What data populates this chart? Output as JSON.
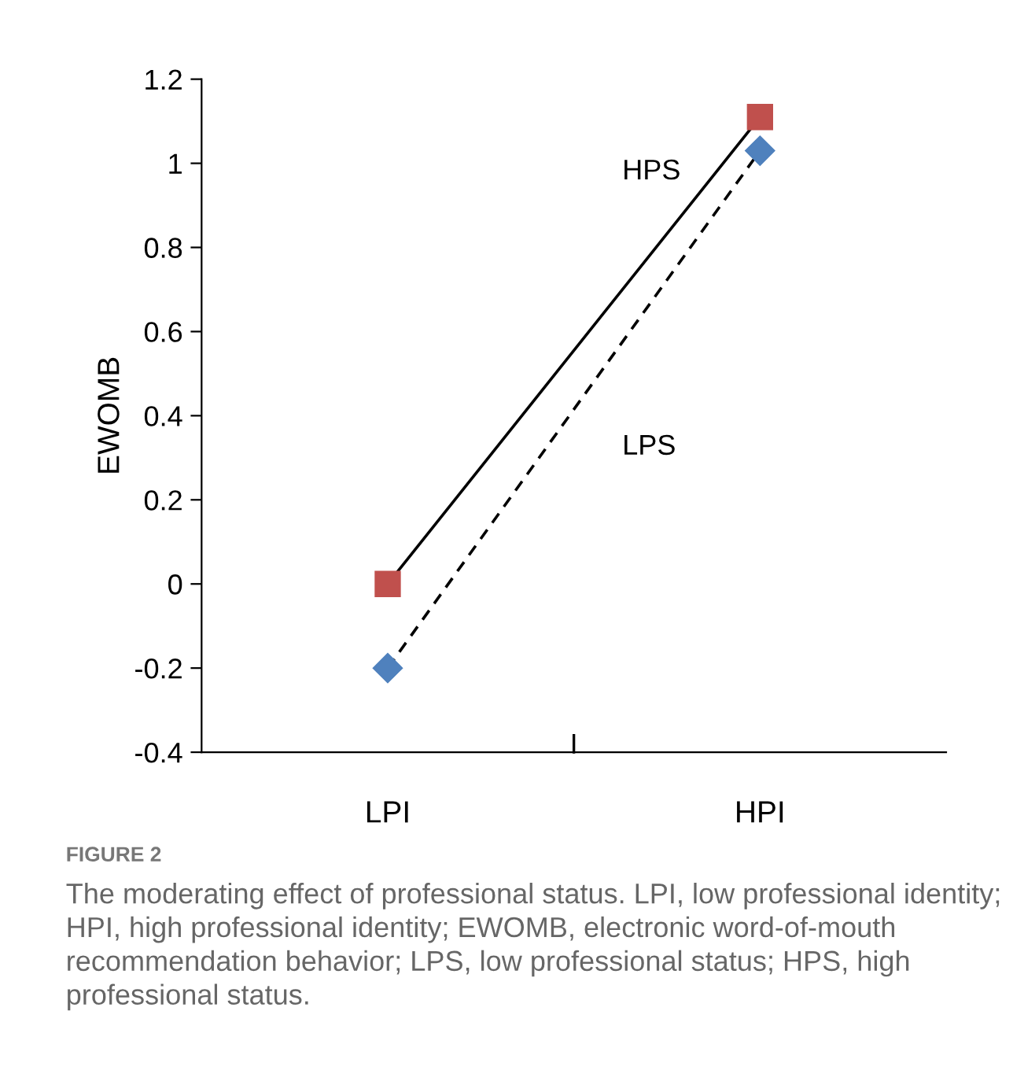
{
  "chart_data": {
    "type": "line",
    "ylabel": "EWOMB",
    "categories": [
      "LPI",
      "HPI"
    ],
    "series": [
      {
        "name": "HPS",
        "color": "#c0504d",
        "values": [
          0,
          1.11
        ],
        "marker": "square",
        "line_style": "solid"
      },
      {
        "name": "LPS",
        "color": "#4f81bd",
        "values": [
          -0.2,
          1.03
        ],
        "marker": "diamond",
        "line_style": "dashed"
      }
    ],
    "ylim": [
      -0.4,
      1.2
    ],
    "yticks": [
      -0.4,
      -0.2,
      0,
      0.2,
      0.4,
      0.6,
      0.8,
      1,
      1.2
    ],
    "grid": false,
    "legend": false,
    "annotations": [
      "FIGURE 2",
      "The moderating effect of professional status. LPI, low professional identity; HPI, high professional identity; EWOMB, electronic word-of-mouth recommendation behavior; LPS, low professional status; HPS, high professional status."
    ]
  }
}
